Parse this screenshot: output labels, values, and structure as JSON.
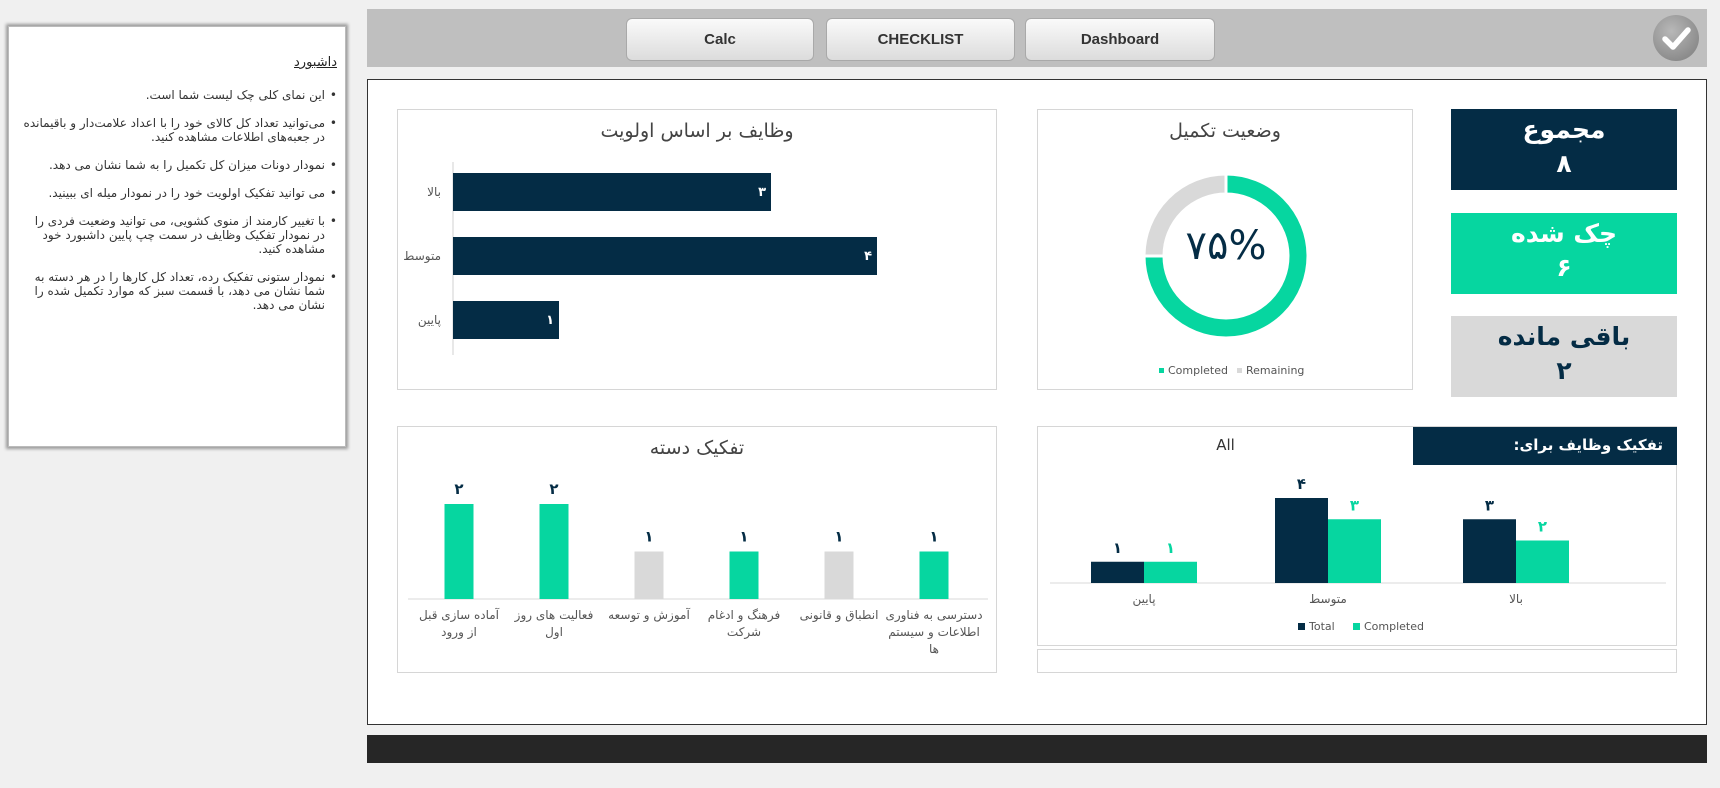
{
  "info": {
    "title": "داشبورد",
    "items": [
      "این نمای کلی چک لیست شما است.",
      "می‌توانید تعداد کل کالای خود را با اعداد علامت‌دار و باقیمانده در جعبه‌های اطلاعات مشاهده کنید.",
      "نمودار دونات میزان کل تکمیل را به شما نشان می دهد.",
      "می توانید تفکیک اولویت خود را در نمودار میله ای ببینید.",
      "با تغییر کارمند از منوی کشویی، می توانید وضعیت فردی را در نمودار تفکیک وظایف در سمت چپ پایین داشبورد خود مشاهده کنید.",
      "نمودار ستونی تفکیک رده، تعداد کل کارها را در هر دسته به شما نشان می دهد، با قسمت سبز که موارد تکمیل شده را نشان می دهد."
    ]
  },
  "nav": {
    "calc": "Calc",
    "checklist": "CHECKLIST",
    "dashboard": "Dashboard"
  },
  "kpis": {
    "total": {
      "label": "مجموع",
      "value": "۸"
    },
    "checked": {
      "label": "چک شده",
      "value": "۶"
    },
    "remaining": {
      "label": "باقی مانده",
      "value": "۲"
    }
  },
  "filter": {
    "label": "تفکیک وظایف برای:",
    "value": "All"
  },
  "colors": {
    "navy": "#042c45",
    "green": "#06d6a0",
    "grey": "#d9d9d9"
  },
  "chart_data": [
    {
      "type": "pie",
      "title": "وضعیت تکمیل",
      "center_label": "۷۵%",
      "categories": [
        "Completed",
        "Remaining"
      ],
      "values": [
        75,
        25
      ],
      "legend": "bottom"
    },
    {
      "type": "bar",
      "orientation": "horizontal",
      "title": "وظایف بر اساس اولویت",
      "categories": [
        "بالا",
        "متوسط",
        "پایین"
      ],
      "values": [
        3,
        4,
        1
      ],
      "value_labels": [
        "۳",
        "۴",
        "۱"
      ],
      "xlim": [
        0,
        5
      ]
    },
    {
      "type": "bar",
      "title": "",
      "categories": [
        "پایین",
        "متوسط",
        "بالا"
      ],
      "series": [
        {
          "name": "Total",
          "values": [
            1,
            4,
            3
          ],
          "labels": [
            "۱",
            "۴",
            "۳"
          ]
        },
        {
          "name": "Completed",
          "values": [
            1,
            3,
            2
          ],
          "labels": [
            "۱",
            "۳",
            "۲"
          ]
        }
      ],
      "legend": "bottom",
      "ylim": [
        0,
        4
      ]
    },
    {
      "type": "bar",
      "title": "تفکیک دسته",
      "categories": [
        "آماده سازی قبل از ورود",
        "فعالیت های روز اول",
        "آموزش و توسعه",
        "فرهنگ و ادغام شرکت",
        "انطباق و قانونی",
        "دسترسی به فناوری اطلاعات و سیستم ها"
      ],
      "values": [
        2,
        2,
        1,
        1,
        1,
        1
      ],
      "value_labels": [
        "۲",
        "۲",
        "۱",
        "۱",
        "۱",
        "۱"
      ],
      "complete": [
        true,
        true,
        false,
        true,
        false,
        true
      ],
      "ylim": [
        0,
        2
      ]
    }
  ]
}
